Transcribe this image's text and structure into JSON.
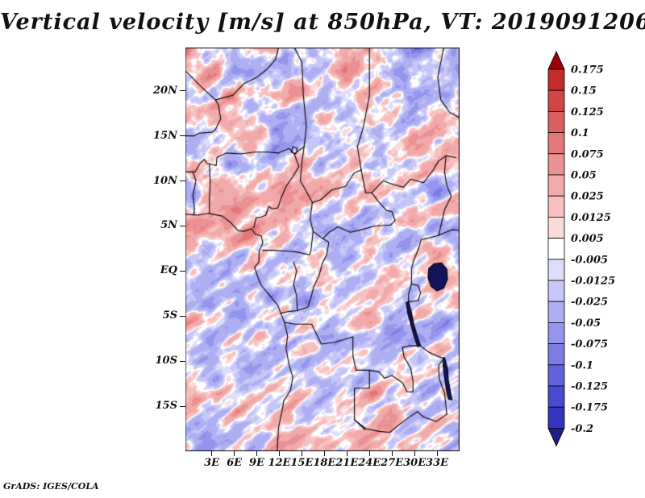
{
  "title": "Vertical velocity [m/s] at 850hPa, VT: 2019091206",
  "footer": "GrADS: IGES/COLA",
  "chart_data": {
    "type": "heatmap",
    "title": "Vertical velocity [m/s] at 850hPa, VT: 2019091206",
    "x_ticks": [
      "3E",
      "6E",
      "9E",
      "12E",
      "15E",
      "18E",
      "21E",
      "24E",
      "27E",
      "30E",
      "33E"
    ],
    "x_tick_lons": [
      3,
      6,
      9,
      12,
      15,
      18,
      21,
      24,
      27,
      30,
      33
    ],
    "y_ticks": [
      "20N",
      "15N",
      "10N",
      "5N",
      "EQ",
      "5S",
      "10S",
      "15S"
    ],
    "y_tick_lats": [
      20,
      15,
      10,
      5,
      0,
      -5,
      -10,
      -15
    ],
    "lon_range": [
      -0.5,
      36
    ],
    "lat_range": [
      -20,
      24.8
    ],
    "grid": false,
    "legend_position": "right",
    "colorbar": {
      "labels": [
        "0.175",
        "0.15",
        "0.125",
        "0.1",
        "0.075",
        "0.05",
        "0.025",
        "0.0125",
        "0.005",
        "-0.005",
        "-0.0125",
        "-0.025",
        "-0.05",
        "-0.075",
        "-0.1",
        "-0.125",
        "-0.175",
        "-0.2"
      ],
      "levels_top_to_bottom": [
        0.175,
        0.15,
        0.125,
        0.1,
        0.075,
        0.05,
        0.025,
        0.0125,
        0.005,
        -0.005,
        -0.0125,
        -0.025,
        -0.05,
        -0.075,
        -0.1,
        -0.125,
        -0.175,
        -0.2
      ],
      "colors_top_to_bottom": [
        "#9b0007",
        "#c32b2b",
        "#d04545",
        "#db5f5f",
        "#e47878",
        "#ec9191",
        "#f2a9a9",
        "#f7c0c0",
        "#fbdada",
        "#ffffff",
        "#dedefb",
        "#c6c6f8",
        "#aeaef3",
        "#9595ed",
        "#7c7ce5",
        "#6363db",
        "#4a4ad0",
        "#3434c0",
        "#1e1e8f"
      ]
    },
    "border_color": "#000000",
    "lake_color": "#14145a",
    "noise": {
      "seed": 11,
      "base_freq": 0.035,
      "octaves": 4,
      "gain": 0.55,
      "lacunarity": 2.0,
      "streak_angle_deg": 35,
      "streak_stretch": 3.2,
      "streak_freq": 0.02,
      "amp_scale": 0.32,
      "coast_bump": {
        "lon": 1.5,
        "lat": 5.2,
        "amp": 0.07,
        "slon": 3.5,
        "slat": 2.2
      }
    },
    "borders": [
      [
        [
          -0.5,
          6.3
        ],
        [
          1.2,
          6.2
        ],
        [
          2.5,
          6.4
        ],
        [
          4.4,
          6.1
        ],
        [
          5.5,
          5.4
        ],
        [
          6.5,
          4.5
        ],
        [
          7.2,
          4.4
        ],
        [
          8.3,
          4.7
        ],
        [
          8.8,
          4.1
        ],
        [
          9.6,
          3.9
        ],
        [
          9.8,
          3.1
        ],
        [
          9.3,
          2.2
        ],
        [
          9.3,
          1.0
        ],
        [
          8.7,
          0.4
        ],
        [
          9.2,
          -0.8
        ],
        [
          9.6,
          -1.6
        ],
        [
          10.6,
          -2.6
        ],
        [
          11.8,
          -3.8
        ],
        [
          12.2,
          -4.7
        ],
        [
          12.7,
          -5.7
        ],
        [
          13.1,
          -7.2
        ],
        [
          12.9,
          -8.6
        ],
        [
          13.3,
          -10.4
        ],
        [
          13.8,
          -11.8
        ],
        [
          13.5,
          -13.2
        ],
        [
          12.6,
          -14.4
        ],
        [
          12.3,
          -15.8
        ],
        [
          11.9,
          -17.3
        ],
        [
          11.8,
          -18.8
        ],
        [
          11.7,
          -20.0
        ]
      ],
      [
        [
          2.7,
          11.9
        ],
        [
          3.6,
          11.7
        ],
        [
          3.7,
          12.6
        ],
        [
          5.0,
          13.1
        ],
        [
          6.8,
          13.0
        ],
        [
          8.7,
          13.2
        ],
        [
          10.5,
          13.2
        ],
        [
          11.9,
          13.1
        ],
        [
          13.3,
          13.6
        ],
        [
          14.0,
          13.0
        ]
      ],
      [
        [
          14.0,
          13.0
        ],
        [
          15.3,
          13.8
        ],
        [
          15.6,
          16.0
        ],
        [
          15.2,
          19.5
        ],
        [
          15.0,
          23.2
        ],
        [
          14.0,
          24.8
        ]
      ],
      [
        [
          -0.5,
          15.0
        ],
        [
          0.7,
          15.0
        ],
        [
          1.3,
          15.3
        ],
        [
          3.0,
          15.4
        ],
        [
          3.5,
          15.7
        ],
        [
          4.2,
          16.9
        ],
        [
          3.9,
          18.4
        ],
        [
          3.5,
          19.0
        ]
      ],
      [
        [
          3.5,
          19.0
        ],
        [
          5.8,
          19.5
        ],
        [
          7.3,
          20.8
        ],
        [
          9.0,
          21.5
        ],
        [
          10.5,
          22.5
        ],
        [
          11.5,
          23.5
        ],
        [
          11.9,
          24.8
        ]
      ],
      [
        [
          3.5,
          19.0
        ],
        [
          1.8,
          20.3
        ],
        [
          0.0,
          21.8
        ],
        [
          -0.5,
          22.2
        ]
      ],
      [
        [
          -0.5,
          11.0
        ],
        [
          0.8,
          11.0
        ],
        [
          1.4,
          11.9
        ],
        [
          2.0,
          12.4
        ],
        [
          2.4,
          11.9
        ],
        [
          2.7,
          11.9
        ]
      ],
      [
        [
          2.7,
          11.9
        ],
        [
          2.8,
          9.8
        ],
        [
          2.7,
          8.0
        ],
        [
          2.7,
          6.4
        ]
      ],
      [
        [
          0.5,
          11.0
        ],
        [
          0.9,
          10.0
        ],
        [
          0.5,
          8.4
        ],
        [
          0.7,
          6.9
        ],
        [
          0.6,
          6.2
        ]
      ],
      [
        [
          14.0,
          13.0
        ],
        [
          14.6,
          11.6
        ],
        [
          13.9,
          10.6
        ],
        [
          12.9,
          9.4
        ],
        [
          12.2,
          8.0
        ],
        [
          11.8,
          7.0
        ],
        [
          11.0,
          6.9
        ],
        [
          10.6,
          7.2
        ],
        [
          10.2,
          6.2
        ],
        [
          9.6,
          6.0
        ],
        [
          8.9,
          5.9
        ],
        [
          8.6,
          4.8
        ]
      ],
      [
        [
          15.3,
          13.8
        ],
        [
          15.0,
          12.0
        ],
        [
          14.8,
          10.0
        ],
        [
          15.5,
          9.0
        ],
        [
          16.4,
          7.6
        ],
        [
          17.5,
          7.9
        ],
        [
          19.0,
          9.0
        ],
        [
          20.8,
          9.4
        ],
        [
          22.0,
          10.9
        ],
        [
          22.9,
          11.2
        ]
      ],
      [
        [
          22.9,
          11.2
        ],
        [
          22.4,
          13.8
        ],
        [
          23.2,
          16.0
        ],
        [
          24.0,
          19.5
        ],
        [
          24.0,
          24.8
        ]
      ],
      [
        [
          16.4,
          7.6
        ],
        [
          16.1,
          5.8
        ],
        [
          16.5,
          4.4
        ],
        [
          17.8,
          3.6
        ],
        [
          18.6,
          4.3
        ],
        [
          19.8,
          4.9
        ],
        [
          21.5,
          4.3
        ],
        [
          23.0,
          4.6
        ],
        [
          24.7,
          5.0
        ],
        [
          26.8,
          5.1
        ],
        [
          27.4,
          5.6
        ]
      ],
      [
        [
          27.4,
          5.6
        ],
        [
          27.0,
          6.6
        ],
        [
          26.3,
          6.7
        ],
        [
          25.3,
          7.6
        ],
        [
          24.3,
          8.7
        ],
        [
          23.5,
          8.7
        ],
        [
          22.9,
          11.2
        ]
      ],
      [
        [
          12.2,
          -4.7
        ],
        [
          13.1,
          -4.5
        ],
        [
          14.4,
          -4.4
        ],
        [
          15.8,
          -4.0
        ],
        [
          16.2,
          -3.0
        ],
        [
          16.6,
          -1.7
        ],
        [
          17.3,
          -0.5
        ],
        [
          17.7,
          0.8
        ],
        [
          18.3,
          1.8
        ],
        [
          18.6,
          3.2
        ],
        [
          17.8,
          3.6
        ]
      ],
      [
        [
          9.8,
          2.3
        ],
        [
          11.3,
          2.3
        ],
        [
          13.3,
          2.2
        ],
        [
          14.4,
          2.1
        ],
        [
          16.0,
          1.8
        ],
        [
          16.2,
          2.2
        ],
        [
          16.5,
          4.4
        ]
      ],
      [
        [
          13.9,
          1.0
        ],
        [
          14.3,
          0.0
        ],
        [
          13.9,
          -1.5
        ],
        [
          14.3,
          -2.7
        ],
        [
          14.4,
          -4.4
        ]
      ],
      [
        [
          12.7,
          -5.7
        ],
        [
          14.0,
          -5.9
        ],
        [
          16.3,
          -5.9
        ],
        [
          17.6,
          -8.1
        ],
        [
          19.4,
          -7.9
        ],
        [
          21.8,
          -7.3
        ],
        [
          21.8,
          -9.4
        ],
        [
          22.2,
          -11.0
        ],
        [
          24.0,
          -11.0
        ]
      ],
      [
        [
          24.0,
          -11.0
        ],
        [
          24.0,
          -13.0
        ],
        [
          22.0,
          -13.0
        ],
        [
          22.0,
          -16.5
        ],
        [
          23.4,
          -17.6
        ]
      ],
      [
        [
          24.0,
          -11.0
        ],
        [
          25.3,
          -11.2
        ],
        [
          26.0,
          -11.9
        ],
        [
          27.0,
          -11.6
        ],
        [
          28.4,
          -12.4
        ],
        [
          29.0,
          -13.4
        ],
        [
          29.8,
          -13.4
        ],
        [
          29.8,
          -12.2
        ],
        [
          29.5,
          -10.8
        ],
        [
          28.6,
          -9.5
        ],
        [
          28.4,
          -8.5
        ],
        [
          29.2,
          -8.3
        ],
        [
          30.8,
          -8.3
        ]
      ],
      [
        [
          24.3,
          8.7
        ],
        [
          25.8,
          10.0
        ],
        [
          27.2,
          9.6
        ],
        [
          28.5,
          9.3
        ],
        [
          29.5,
          10.2
        ],
        [
          31.2,
          9.8
        ],
        [
          32.4,
          11.1
        ],
        [
          33.2,
          12.2
        ],
        [
          34.2,
          12.8
        ],
        [
          35.5,
          12.6
        ]
      ],
      [
        [
          34.2,
          12.8
        ],
        [
          34.0,
          11.0
        ],
        [
          34.3,
          9.5
        ],
        [
          34.9,
          8.3
        ],
        [
          34.0,
          6.8
        ],
        [
          33.2,
          3.9
        ]
      ],
      [
        [
          30.9,
          3.5
        ],
        [
          32.0,
          3.7
        ],
        [
          33.0,
          3.9
        ],
        [
          33.9,
          4.2
        ],
        [
          35.0,
          4.6
        ],
        [
          35.9,
          4.5
        ]
      ],
      [
        [
          29.6,
          -1.4
        ],
        [
          29.6,
          0.2
        ],
        [
          29.9,
          1.2
        ],
        [
          30.5,
          2.4
        ],
        [
          30.9,
          3.5
        ]
      ],
      [
        [
          29.2,
          -3.4
        ],
        [
          30.5,
          -3.3
        ],
        [
          30.8,
          -2.4
        ],
        [
          30.5,
          -1.6
        ],
        [
          29.9,
          -1.5
        ],
        [
          29.6,
          -1.4
        ],
        [
          29.2,
          -2.6
        ],
        [
          29.2,
          -3.4
        ]
      ],
      [
        [
          30.8,
          -8.3
        ],
        [
          31.9,
          -9.0
        ],
        [
          33.2,
          -9.5
        ],
        [
          33.9,
          -9.7
        ]
      ],
      [
        [
          22.0,
          -16.5
        ],
        [
          23.5,
          -17.5
        ],
        [
          25.3,
          -17.8
        ],
        [
          26.7,
          -17.9
        ],
        [
          28.8,
          -16.5
        ],
        [
          30.4,
          -15.6
        ],
        [
          31.2,
          -16.2
        ],
        [
          32.9,
          -16.7
        ],
        [
          34.3,
          -15.9
        ]
      ],
      [
        [
          33.9,
          -9.7
        ],
        [
          33.2,
          -10.5
        ],
        [
          33.3,
          -12.0
        ],
        [
          34.0,
          -13.5
        ],
        [
          34.3,
          -15.9
        ]
      ],
      [
        [
          33.9,
          24.8
        ],
        [
          33.1,
          21.5
        ],
        [
          33.5,
          19.0
        ],
        [
          34.7,
          17.6
        ],
        [
          36.0,
          17.0
        ]
      ],
      [
        [
          13.8,
          13.8
        ],
        [
          14.4,
          13.6
        ],
        [
          14.2,
          13.0
        ],
        [
          13.6,
          13.2
        ],
        [
          13.8,
          13.8
        ]
      ]
    ],
    "lakes": [
      [
        [
          31.9,
          0.3
        ],
        [
          32.6,
          0.8
        ],
        [
          33.6,
          0.9
        ],
        [
          34.3,
          0.2
        ],
        [
          34.4,
          -0.9
        ],
        [
          33.9,
          -1.9
        ],
        [
          33.0,
          -2.2
        ],
        [
          32.2,
          -1.7
        ],
        [
          31.8,
          -0.7
        ],
        [
          31.9,
          0.3
        ]
      ],
      [
        [
          29.2,
          -3.4
        ],
        [
          29.6,
          -4.6
        ],
        [
          29.9,
          -5.9
        ],
        [
          30.3,
          -7.0
        ],
        [
          30.8,
          -8.3
        ],
        [
          30.4,
          -8.4
        ],
        [
          29.9,
          -7.1
        ],
        [
          29.5,
          -5.9
        ],
        [
          29.1,
          -4.7
        ],
        [
          28.9,
          -3.5
        ]
      ],
      [
        [
          34.0,
          -9.6
        ],
        [
          34.4,
          -10.8
        ],
        [
          34.5,
          -12.1
        ],
        [
          34.8,
          -13.4
        ],
        [
          35.0,
          -14.3
        ],
        [
          34.5,
          -14.2
        ],
        [
          34.2,
          -13.0
        ],
        [
          34.0,
          -11.8
        ],
        [
          33.8,
          -10.4
        ],
        [
          33.9,
          -9.6
        ]
      ]
    ]
  }
}
